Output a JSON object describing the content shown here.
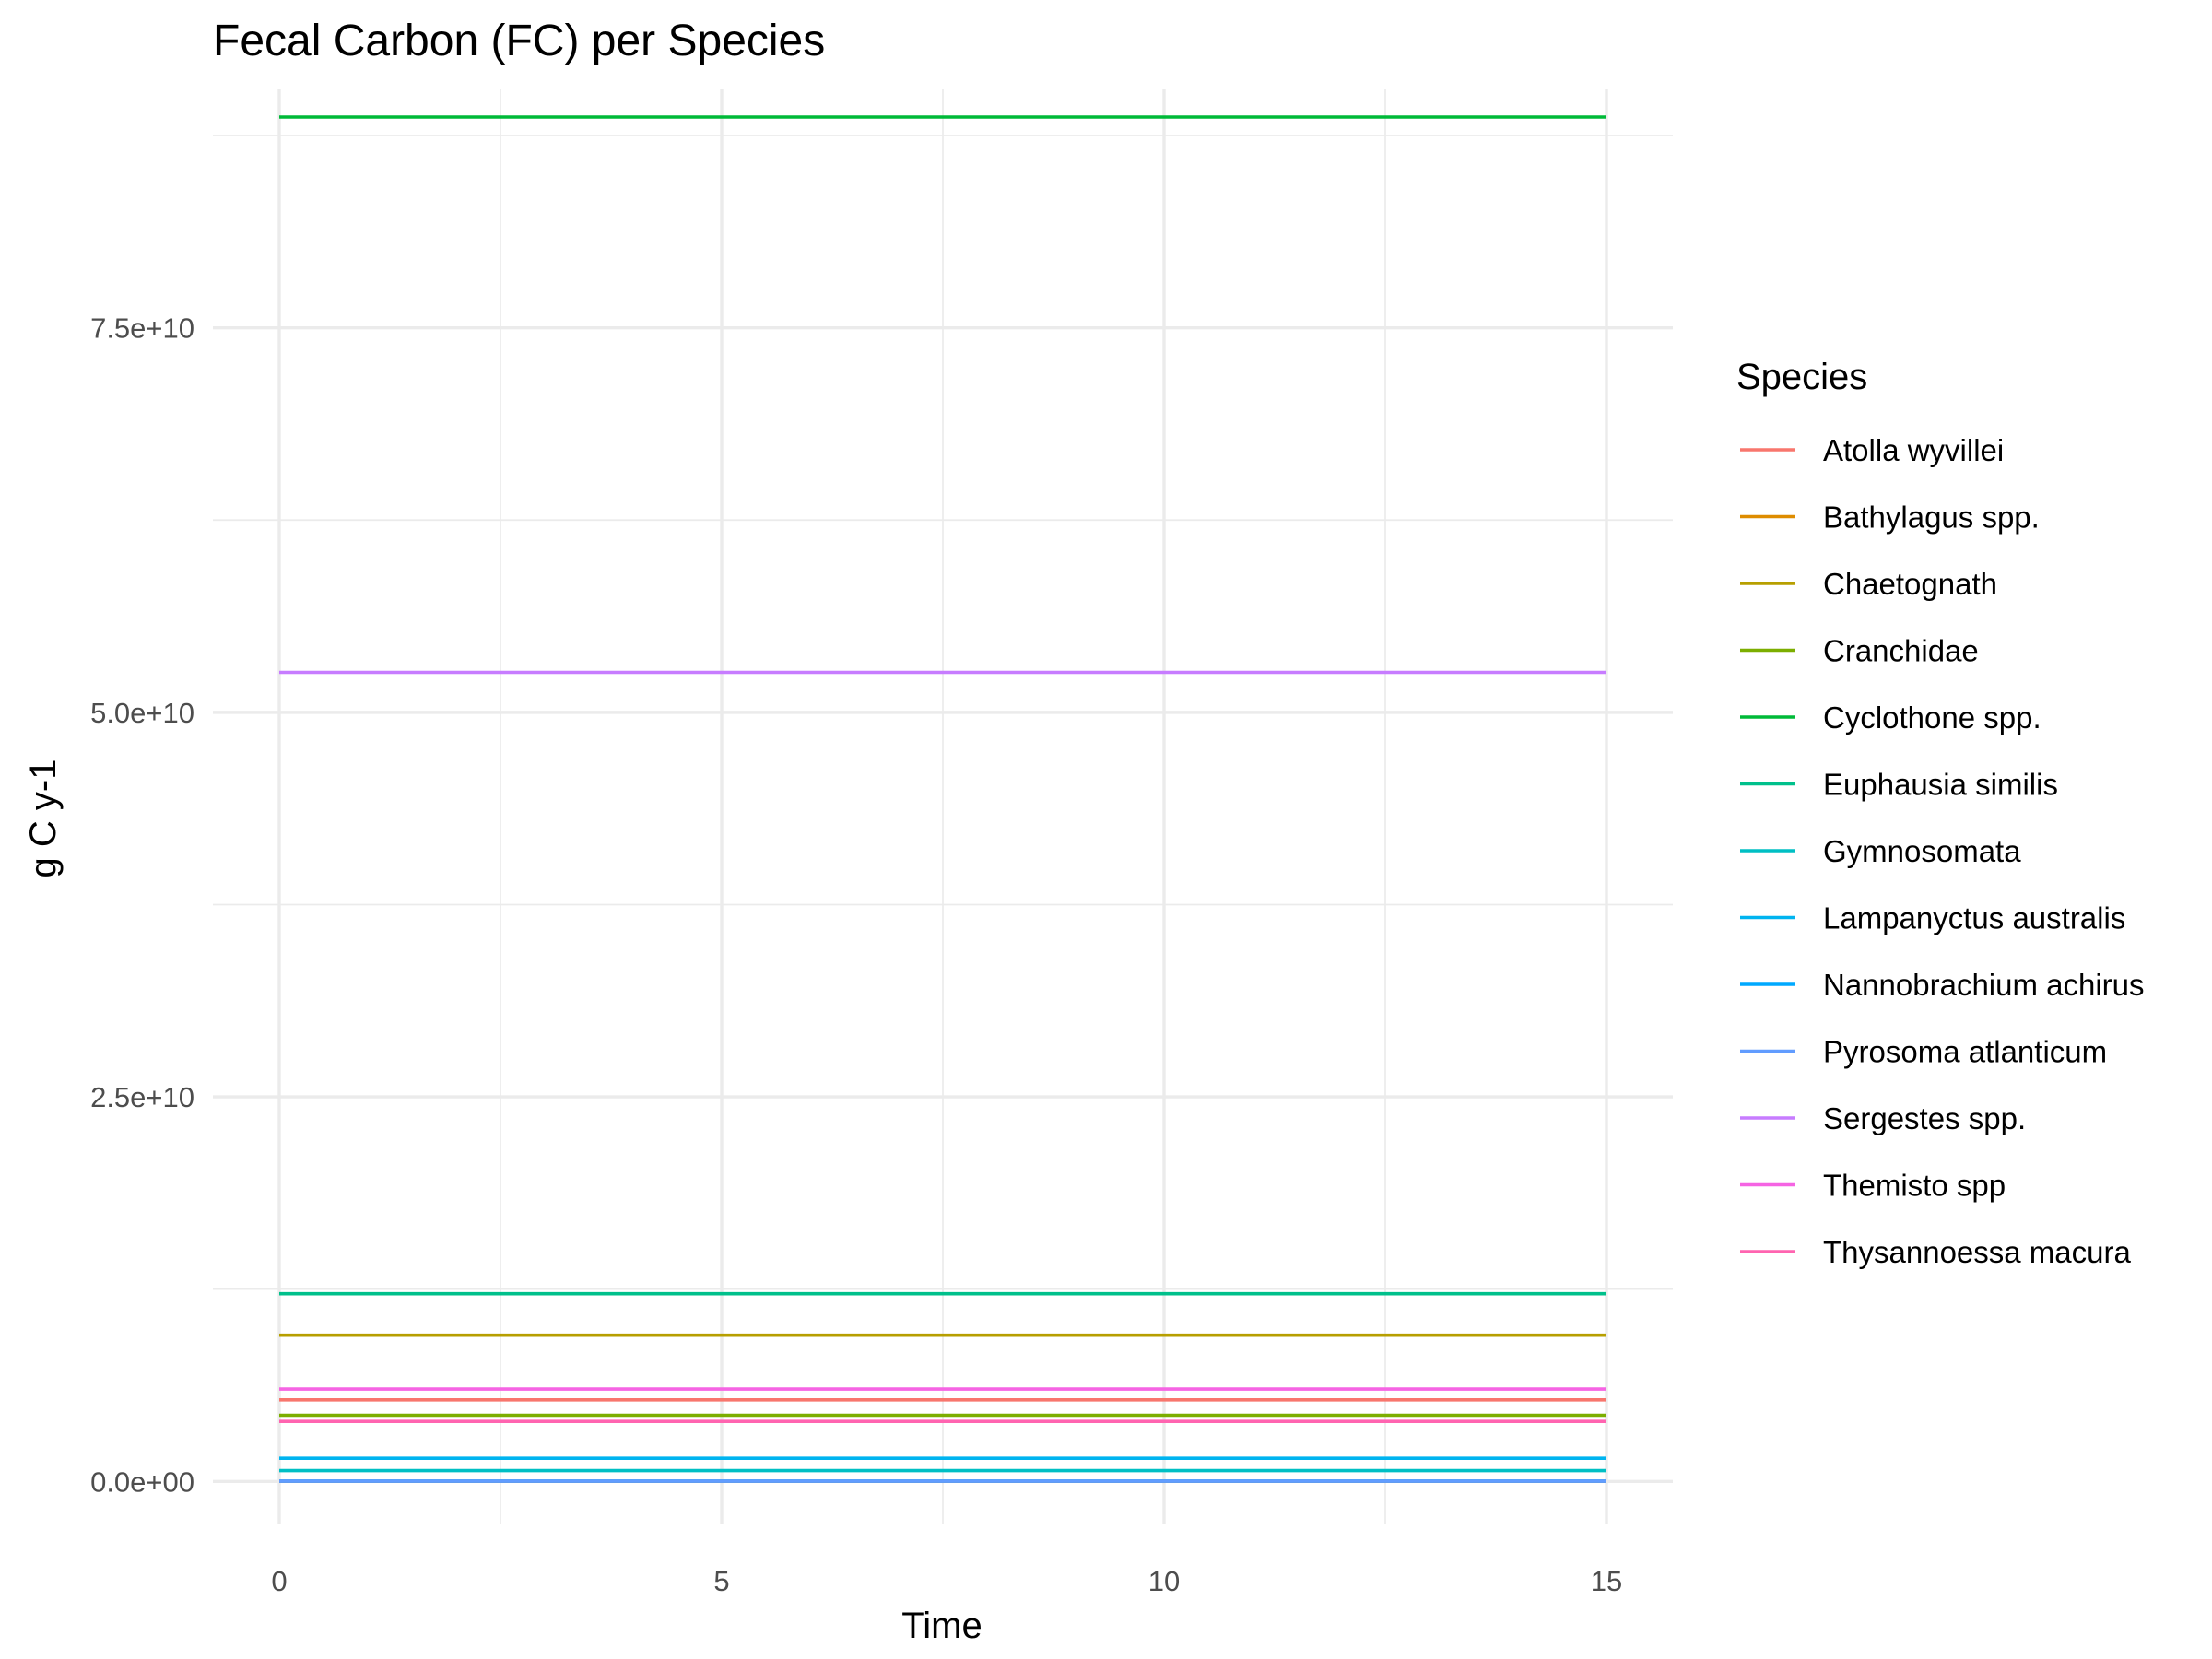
{
  "chart_data": {
    "type": "line",
    "title": "Fecal Carbon (FC) per Species",
    "xlabel": "Time",
    "ylabel": "g C y-1",
    "xlim": [
      -0.75,
      15.75
    ],
    "ylim": [
      -2800000000.0,
      90500000000.0
    ],
    "x_ticks": [
      0,
      5,
      10,
      15
    ],
    "x_tick_labels": [
      "0",
      "5",
      "10",
      "15"
    ],
    "x_minor_ticks": [
      2.5,
      7.5,
      12.5
    ],
    "y_ticks": [
      0,
      25000000000,
      50000000000,
      75000000000
    ],
    "y_tick_labels": [
      "0.0e+00",
      "2.5e+10",
      "5.0e+10",
      "7.5e+10"
    ],
    "y_minor_ticks": [
      12500000000,
      37500000000,
      62500000000,
      87500000000
    ],
    "grid": true,
    "legend_title": "Species",
    "legend_position": "right",
    "x": [
      0,
      15
    ],
    "series": [
      {
        "name": "Atolla wyvillei",
        "color": "#F8766D",
        "values": [
          5300000000,
          5300000000
        ]
      },
      {
        "name": "Bathylagus spp.",
        "color": "#DE8C00",
        "values": [
          5000000,
          5000000
        ]
      },
      {
        "name": "Chaetognath",
        "color": "#B79F00",
        "values": [
          9500000000,
          9500000000
        ]
      },
      {
        "name": "Cranchidae",
        "color": "#7CAE00",
        "values": [
          4300000000,
          4300000000
        ]
      },
      {
        "name": "Cyclothone spp.",
        "color": "#00BA38",
        "values": [
          88700000000,
          88700000000
        ]
      },
      {
        "name": "Euphausia similis",
        "color": "#00C08B",
        "values": [
          12200000000,
          12200000000
        ]
      },
      {
        "name": "Gymnosomata",
        "color": "#00BFC4",
        "values": [
          700000000,
          700000000
        ]
      },
      {
        "name": "Lampanyctus australis",
        "color": "#00B4F0",
        "values": [
          1500000000,
          1500000000
        ]
      },
      {
        "name": "Nannobrachium achirus",
        "color": "#00A9FF",
        "values": [
          20000000,
          20000000
        ]
      },
      {
        "name": "Pyrosoma atlanticum",
        "color": "#619CFF",
        "values": [
          10000000,
          10000000
        ]
      },
      {
        "name": "Sergestes spp.",
        "color": "#C77CFF",
        "values": [
          52600000000,
          52600000000
        ]
      },
      {
        "name": "Themisto spp",
        "color": "#F564E3",
        "values": [
          6000000000,
          6000000000
        ]
      },
      {
        "name": "Thysannoessa macura",
        "color": "#FF64B0",
        "values": [
          3900000000,
          3900000000
        ]
      }
    ]
  }
}
